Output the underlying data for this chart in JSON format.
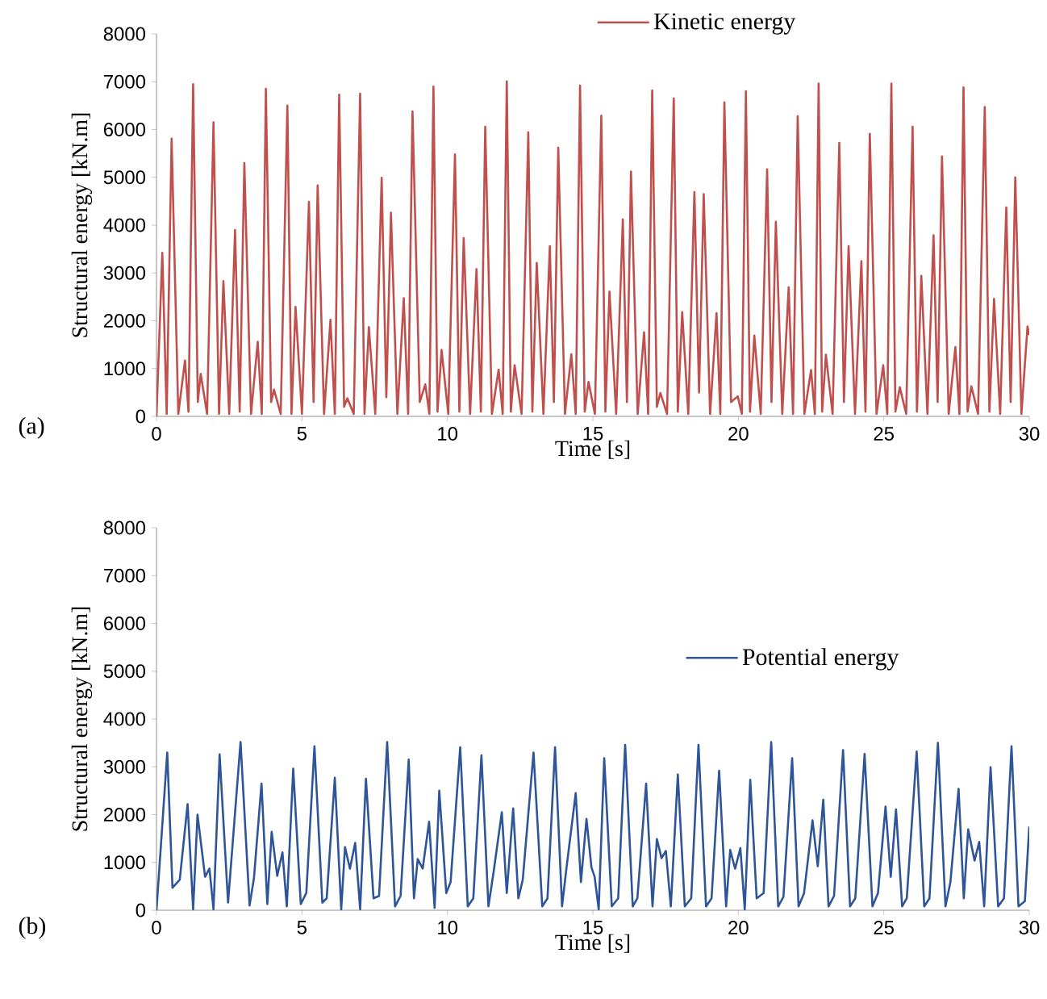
{
  "chart_data": [
    {
      "type": "line",
      "xlabel": "Time [s]",
      "ylabel": "Structural energy [kN.m]",
      "annotations": [
        "(a)"
      ],
      "legend": "top",
      "xlim": [
        0,
        30
      ],
      "ylim": [
        0,
        8000
      ],
      "xticks": [
        0,
        5,
        10,
        15,
        20,
        25,
        30
      ],
      "yticks": [
        0,
        1000,
        2000,
        3000,
        4000,
        5000,
        6000,
        7000,
        8000
      ],
      "x": [
        0,
        0.2,
        0.35,
        0.52,
        0.75,
        0.98,
        1.1,
        1.26,
        1.42,
        1.52,
        1.74,
        1.96,
        2.15,
        2.3,
        2.5,
        2.7,
        2.86,
        3.02,
        3.25,
        3.48,
        3.62,
        3.76,
        3.94,
        4.04,
        4.27,
        4.5,
        4.64,
        4.78,
        5.0,
        5.24,
        5.4,
        5.54,
        5.76,
        5.98,
        6.13,
        6.28,
        6.45,
        6.56,
        6.78,
        7.0,
        7.15,
        7.3,
        7.52,
        7.74,
        7.9,
        8.06,
        8.28,
        8.5,
        8.65,
        8.8,
        9.05,
        9.24,
        9.38,
        9.52,
        9.66,
        9.8,
        10.03,
        10.26,
        10.41,
        10.56,
        10.78,
        11.0,
        11.15,
        11.3,
        11.53,
        11.76,
        11.9,
        12.04,
        12.18,
        12.31,
        12.55,
        12.78,
        12.92,
        13.07,
        13.3,
        13.52,
        13.66,
        13.81,
        14.04,
        14.26,
        14.41,
        14.56,
        14.72,
        14.85,
        15.07,
        15.29,
        15.43,
        15.57,
        15.8,
        16.03,
        16.17,
        16.31,
        16.54,
        16.76,
        16.9,
        17.04,
        17.2,
        17.32,
        17.55,
        17.78,
        17.92,
        18.07,
        18.28,
        18.49,
        18.65,
        18.81,
        19.03,
        19.25,
        19.38,
        19.52,
        19.75,
        19.98,
        20.12,
        20.26,
        20.4,
        20.55,
        20.77,
        20.99,
        21.14,
        21.29,
        21.51,
        21.73,
        21.88,
        22.04,
        22.27,
        22.5,
        22.63,
        22.76,
        22.88,
        23.01,
        23.24,
        23.47,
        23.63,
        23.79,
        24.01,
        24.23,
        24.37,
        24.52,
        24.75,
        24.98,
        25.12,
        25.26,
        25.4,
        25.55,
        25.77,
        25.99,
        26.14,
        26.29,
        26.5,
        26.71,
        26.85,
        27.0,
        27.23,
        27.46,
        27.6,
        27.74,
        27.88,
        28.01,
        28.24,
        28.47,
        28.63,
        28.79,
        29.0,
        29.21,
        29.36,
        29.52,
        29.73,
        29.94,
        30
      ],
      "series": [
        {
          "name": "Kinetic energy",
          "color": "#c0504d",
          "values": [
            0,
            3420,
            50,
            5810,
            50,
            1170,
            100,
            6950,
            300,
            890,
            50,
            6150,
            50,
            2830,
            50,
            3900,
            100,
            5300,
            50,
            1560,
            50,
            6850,
            300,
            560,
            50,
            6500,
            50,
            2290,
            50,
            4490,
            300,
            4830,
            50,
            2020,
            50,
            6730,
            200,
            380,
            50,
            6750,
            50,
            1870,
            50,
            4990,
            400,
            4260,
            50,
            2470,
            50,
            6380,
            300,
            670,
            50,
            6900,
            100,
            1390,
            50,
            5480,
            100,
            3730,
            50,
            3080,
            100,
            6060,
            50,
            980,
            50,
            7010,
            100,
            1070,
            50,
            5940,
            100,
            3210,
            50,
            3560,
            300,
            5620,
            50,
            1300,
            50,
            6920,
            100,
            720,
            50,
            6290,
            100,
            2610,
            50,
            4120,
            300,
            5120,
            50,
            1760,
            50,
            6820,
            200,
            490,
            50,
            6650,
            100,
            2180,
            50,
            4690,
            500,
            4650,
            50,
            2160,
            50,
            6570,
            300,
            420,
            50,
            6800,
            100,
            1690,
            50,
            5170,
            300,
            4070,
            50,
            2700,
            50,
            6280,
            50,
            970,
            50,
            6960,
            100,
            1290,
            50,
            5720,
            300,
            3560,
            50,
            3250,
            100,
            5910,
            50,
            1070,
            50,
            6960,
            100,
            610,
            50,
            6060,
            100,
            2940,
            50,
            3790,
            300,
            5440,
            50,
            1450,
            50,
            6880,
            100,
            630,
            50,
            6470,
            100,
            2460,
            50,
            4370,
            300,
            5000,
            50,
            1880,
            1700
          ]
        }
      ]
    },
    {
      "type": "line",
      "xlabel": "Time [s]",
      "ylabel": "Structural energy [kN.m]",
      "annotations": [
        "(b)"
      ],
      "legend": "right",
      "xlim": [
        0,
        30
      ],
      "ylim": [
        0,
        8000
      ],
      "xticks": [
        0,
        5,
        10,
        15,
        20,
        25,
        30
      ],
      "yticks": [
        0,
        1000,
        2000,
        3000,
        4000,
        5000,
        6000,
        7000,
        8000
      ],
      "x": [
        0,
        0.37,
        0.55,
        0.8,
        1.07,
        1.26,
        1.41,
        1.67,
        1.82,
        1.96,
        2.17,
        2.46,
        2.89,
        3.2,
        3.35,
        3.61,
        3.81,
        3.96,
        4.15,
        4.33,
        4.48,
        4.7,
        4.96,
        5.15,
        5.43,
        5.7,
        5.85,
        6.13,
        6.35,
        6.48,
        6.65,
        6.83,
        7.0,
        7.2,
        7.46,
        7.65,
        7.93,
        8.2,
        8.39,
        8.67,
        8.85,
        8.98,
        9.15,
        9.37,
        9.56,
        9.72,
        9.96,
        10.11,
        10.44,
        10.7,
        10.89,
        11.17,
        11.41,
        11.59,
        11.87,
        12.04,
        12.26,
        12.44,
        12.59,
        12.96,
        13.26,
        13.44,
        13.7,
        13.94,
        14.09,
        14.41,
        14.59,
        14.78,
        14.95,
        15.06,
        15.2,
        15.39,
        15.65,
        15.87,
        16.11,
        16.37,
        16.53,
        16.83,
        17.05,
        17.2,
        17.36,
        17.51,
        17.68,
        17.92,
        18.16,
        18.38,
        18.63,
        18.89,
        19.08,
        19.34,
        19.58,
        19.72,
        19.89,
        20.07,
        20.22,
        20.41,
        20.63,
        20.87,
        21.13,
        21.37,
        21.55,
        21.85,
        22.07,
        22.26,
        22.55,
        22.73,
        22.92,
        23.1,
        23.29,
        23.6,
        23.84,
        24.02,
        24.34,
        24.61,
        24.8,
        25.06,
        25.24,
        25.42,
        25.63,
        25.79,
        26.13,
        26.39,
        26.57,
        26.86,
        27.12,
        27.29,
        27.57,
        27.75,
        27.9,
        28.12,
        28.28,
        28.45,
        28.67,
        28.93,
        29.13,
        29.39,
        29.63,
        29.85,
        30
      ],
      "series": [
        {
          "name": "Potential energy",
          "color": "#2e5597",
          "values": [
            0,
            3300,
            470,
            640,
            2220,
            20,
            2000,
            700,
            870,
            20,
            3260,
            160,
            3520,
            100,
            670,
            2650,
            130,
            1640,
            720,
            1210,
            80,
            2960,
            130,
            360,
            3430,
            160,
            250,
            2770,
            20,
            1320,
            870,
            1410,
            20,
            2750,
            250,
            300,
            3520,
            80,
            300,
            3150,
            250,
            1070,
            870,
            1850,
            50,
            2500,
            360,
            590,
            3410,
            80,
            250,
            3240,
            80,
            810,
            2050,
            360,
            2130,
            250,
            640,
            3300,
            80,
            250,
            3410,
            80,
            870,
            2450,
            590,
            1910,
            900,
            700,
            20,
            3180,
            80,
            250,
            3460,
            80,
            250,
            2650,
            80,
            1490,
            1090,
            1240,
            80,
            2840,
            80,
            250,
            3460,
            80,
            250,
            2920,
            80,
            1260,
            870,
            1300,
            20,
            2730,
            250,
            360,
            3520,
            80,
            280,
            3180,
            80,
            360,
            1880,
            920,
            2310,
            80,
            300,
            3350,
            80,
            250,
            3270,
            80,
            360,
            2170,
            700,
            2110,
            80,
            250,
            3320,
            80,
            250,
            3500,
            80,
            590,
            2540,
            250,
            1690,
            1040,
            1430,
            80,
            2990,
            80,
            250,
            3430,
            80,
            190,
            1750
          ]
        }
      ]
    }
  ]
}
